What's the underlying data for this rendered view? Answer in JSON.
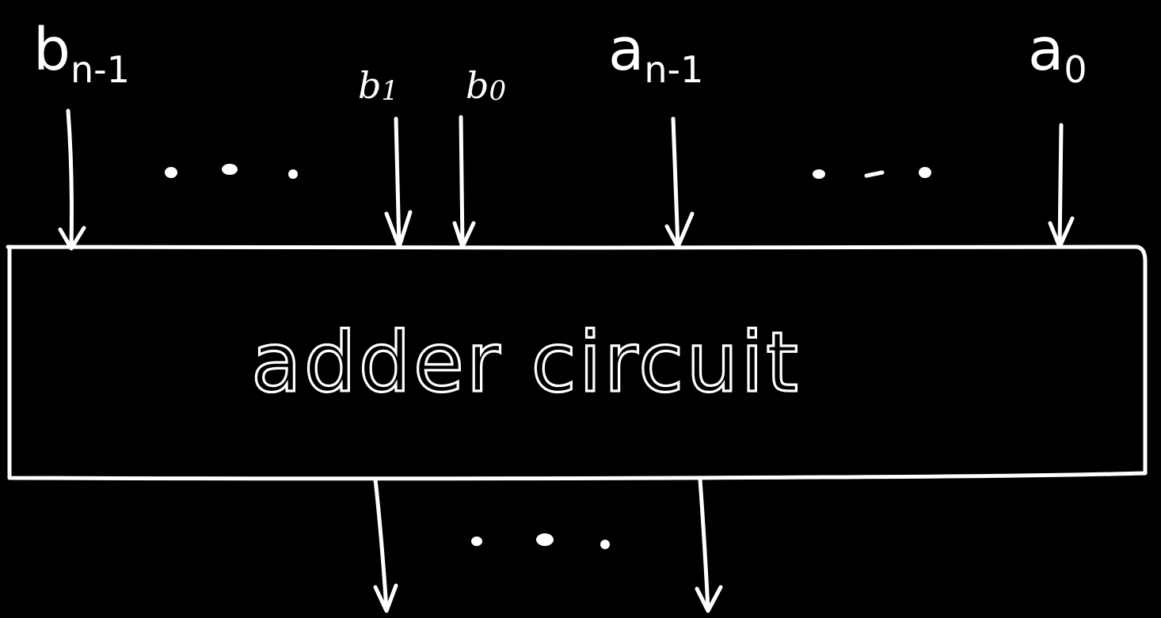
{
  "inputs": {
    "b_n_minus_1": {
      "base": "b",
      "sub": "n-1"
    },
    "b_1": {
      "base": "b",
      "sub": "1"
    },
    "b_0": {
      "base": "b",
      "sub": "0"
    },
    "a_n_minus_1": {
      "base": "a",
      "sub": "n-1"
    },
    "a_0": {
      "base": "a",
      "sub": "0"
    }
  },
  "box": {
    "label": "adder circuit"
  },
  "colors": {
    "background": "#000000",
    "stroke": "#ffffff"
  }
}
